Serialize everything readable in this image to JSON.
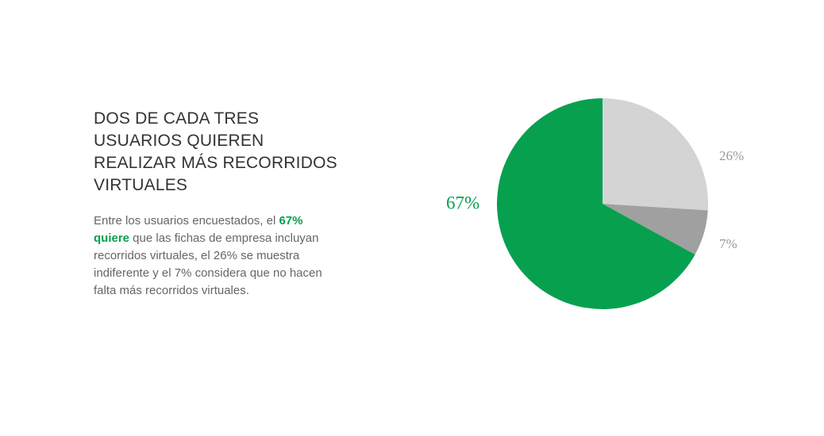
{
  "headline": {
    "line1": "DOS DE CADA TRES",
    "line2": "USUARIOS QUIEREN",
    "line3": "REALIZAR MÁS RECORRIDOS",
    "line4": "VIRTUALES"
  },
  "body": {
    "part1": "Entre los usuarios encuestados, el ",
    "highlight": "67% quiere",
    "part2": " que las fichas de empresa incluyan recorridos virtuales, el 26% se muestra indiferente y el 7% considera que no hacen falta más recorridos virtuales."
  },
  "colors": {
    "green": "#07a04f",
    "light_gray": "#d4d4d4",
    "mid_gray": "#a0a0a0",
    "label_gray": "#999999"
  },
  "chart_data": {
    "type": "pie",
    "start_angle_deg": 0,
    "direction": "clockwise",
    "slices": [
      {
        "value": 26,
        "label": "26%",
        "color": "#d4d4d4",
        "label_color": "#999999"
      },
      {
        "value": 7,
        "label": "7%",
        "color": "#a0a0a0",
        "label_color": "#999999"
      },
      {
        "value": 67,
        "label": "67%",
        "color": "#07a04f",
        "label_color": "#07a04f"
      }
    ]
  }
}
